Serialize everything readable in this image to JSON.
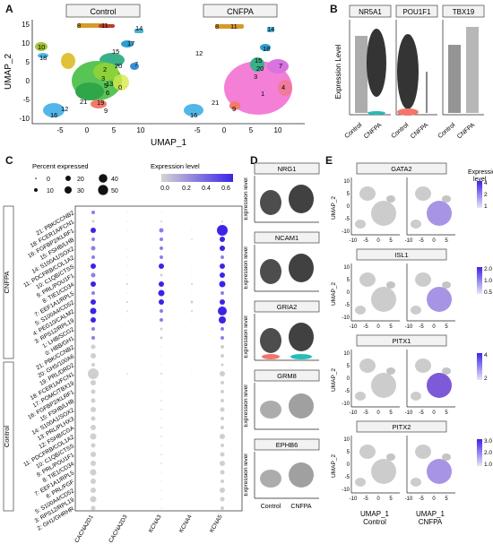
{
  "panels": {
    "A": {
      "label": "A",
      "titles": [
        "Control",
        "CNFPA"
      ],
      "xlabel": "UMAP_1",
      "ylabel": "UMAP_2",
      "xticks": [
        "-5",
        "0",
        "5",
        "10",
        "-5",
        "0",
        "5",
        "10"
      ],
      "yticks": [
        "15",
        "10",
        "5",
        "0",
        "-5",
        "-10"
      ],
      "cluster_labels_control": [
        "8",
        "11",
        "14",
        "10",
        "18",
        "17",
        "15",
        "2",
        "20",
        "7",
        "3",
        "13",
        "6",
        "0",
        "21",
        "19",
        "9",
        "16",
        "5",
        "12"
      ],
      "cluster_labels_cnfpa": [
        "8",
        "11",
        "14",
        "12",
        "18",
        "15",
        "20",
        "1",
        "4",
        "7",
        "21",
        "9",
        "16",
        "3"
      ]
    },
    "B": {
      "label": "B",
      "ylabel": "Expression Level",
      "genes": [
        "NR5A1",
        "POU1F1",
        "TBX19"
      ],
      "groups": [
        "Control",
        "CNFPA"
      ]
    },
    "C": {
      "label": "C",
      "legend_size_title": "Percent expressed",
      "legend_sizes": [
        "0",
        "10",
        "20",
        "30",
        "40",
        "50"
      ],
      "legend_color_title": "Expression level",
      "legend_color_ticks": [
        "0.0",
        "0.2",
        "0.4",
        "0.6"
      ],
      "group_cnfpa": "CNFPA",
      "group_control": "Control",
      "rows_cnfpa": [
        "21: PBK/CCNB2",
        "18: FCER1A/FCN1",
        "16: FGFBP2/KLRF1",
        "15: FSHB/LHB",
        "14: S100A1/SOX2",
        "11: PDCFRB/COL1A2",
        "10: C1QB/CTSS",
        "9: PRL/POU1F1",
        "8: TIE1/CD34",
        "7: EEF1A1/RPL5",
        "5: S100A4/CD52",
        "4: PEG10/CALM2",
        "3: RPS12/RPL19",
        "1: LHB/SCG2",
        "0: HBB/GH1"
      ],
      "rows_control": [
        "21: PBK/CCNB2",
        "20: GHS/100A6",
        "19: PRL/DRD2",
        "18: FCER1A/FCN1",
        "17: POMC/TBX19",
        "16: FGFBP2/KLRF1",
        "15: FSHB/LHB",
        "14: S100A1/SOX2",
        "13: PRL/PLHX3",
        "12: FSHB/CGA",
        "11: PDCFRB/COL1A2",
        "10: C1QB/CTSS",
        "9: PRL/POU1F1",
        "8: TIE1/CD34",
        "7: EEF1A1/RPL5",
        "6: PRL/FGF",
        "5: S100A4/CD52",
        "3: RPS12/RPL19",
        "2: GH1/GHRHR"
      ],
      "genes": [
        "CACNA2D1",
        "CACNA2D3",
        "KCNA3",
        "KCNA4",
        "KCNA5"
      ]
    },
    "D": {
      "label": "D",
      "ylabel": "Expression level",
      "genes": [
        "NRG1",
        "NCAM1",
        "GRIA2",
        "GRM8",
        "EPHB6"
      ],
      "groups": [
        "Control",
        "CNFPA"
      ]
    },
    "E": {
      "label": "E",
      "genes": [
        "GATA2",
        "ISL1",
        "PITX1",
        "PITX2"
      ],
      "legend_title": "Expression\nlevel",
      "legend_ticks": [
        [
          "4",
          "2",
          "1"
        ],
        [
          "2.0",
          "1.0",
          "0.5"
        ],
        [
          "4",
          "2"
        ],
        [
          "3.0",
          "2.0",
          "1.0"
        ]
      ],
      "xlabel_left": "UMAP_1",
      "xlabel_right": "UMAP_1",
      "ylabel": "UMAP_2",
      "group_left": "Control",
      "group_right": "CNFPA",
      "xticks": [
        "-10",
        "-5",
        "0",
        "5",
        "10"
      ],
      "yticks": [
        "10",
        "5",
        "0",
        "-5",
        "-10"
      ]
    }
  },
  "colors": {
    "cnfpa_main": "#f47fd6",
    "control_main": "#59c456",
    "blue_cluster": "#52b7e8",
    "dot_low": "#d4d4d4",
    "dot_high": "#3b24e8",
    "feature_low": "#d0d0d0",
    "feature_high": "#5a2fd8",
    "violin_red": "#f2766d",
    "violin_teal": "#25bdb8"
  }
}
